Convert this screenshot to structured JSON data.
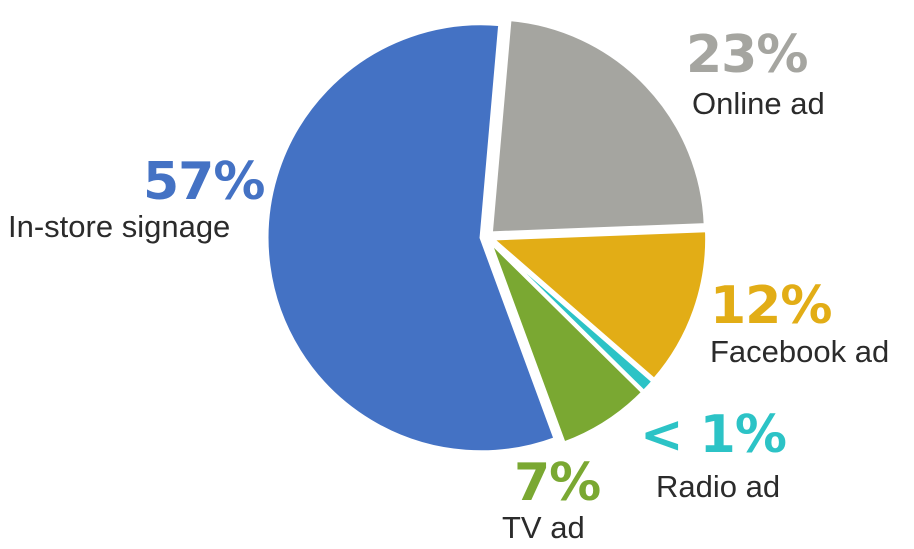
{
  "chart_data": {
    "type": "pie",
    "start_angle_deg": 5,
    "direction": "clockwise",
    "slices": [
      {
        "label": "Online ad",
        "value": 23,
        "display": "23%",
        "color": "#a5a5a0"
      },
      {
        "label": "Facebook ad",
        "value": 12,
        "display": "12%",
        "color": "#e2ad16"
      },
      {
        "label": "Radio ad",
        "value": 1,
        "display": "< 1%",
        "color": "#2cc3c6"
      },
      {
        "label": "TV ad",
        "value": 7,
        "display": "7%",
        "color": "#7aa832"
      },
      {
        "label": "In-store signage",
        "value": 57,
        "display": "57%",
        "color": "#4472c4"
      }
    ]
  }
}
